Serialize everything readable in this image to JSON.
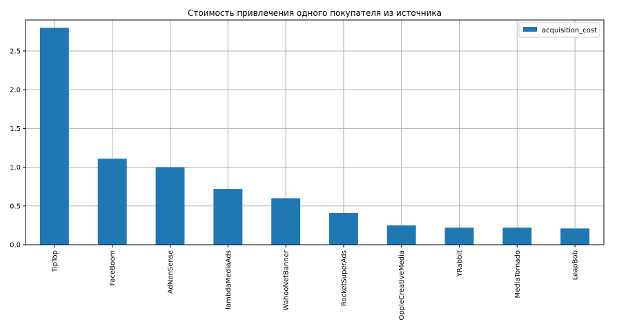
{
  "chart_data": {
    "type": "bar",
    "title": "Стоимость привлечения одного покупателя из источника",
    "xlabel": "",
    "ylabel": "",
    "categories": [
      "TipTop",
      "FaceBoom",
      "AdNonSense",
      "lambdaMediaAds",
      "WahooNetBanner",
      "RocketSuperAds",
      "OppleCreativeMedia",
      "YRabbit",
      "MediaTornado",
      "LeapBob"
    ],
    "series": [
      {
        "name": "acquisition_cost",
        "values": [
          2.8,
          1.11,
          1.0,
          0.72,
          0.6,
          0.41,
          0.25,
          0.22,
          0.22,
          0.21
        ]
      }
    ],
    "ylim": [
      0,
      2.9
    ],
    "yticks": [
      "0.0",
      "0.5",
      "1.0",
      "1.5",
      "2.0",
      "2.5"
    ],
    "grid": true,
    "legend_position": "top-right",
    "colors": {
      "bar": "#1f77b4",
      "grid": "#b0b0b0",
      "axis": "#000000"
    }
  }
}
